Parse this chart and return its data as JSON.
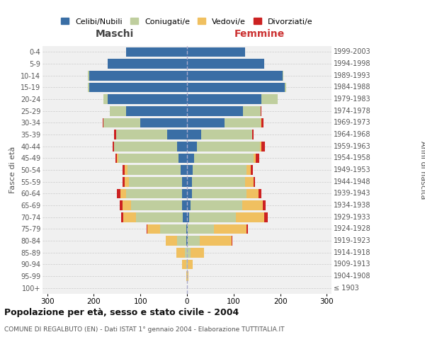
{
  "age_groups": [
    "100+",
    "95-99",
    "90-94",
    "85-89",
    "80-84",
    "75-79",
    "70-74",
    "65-69",
    "60-64",
    "55-59",
    "50-54",
    "45-49",
    "40-44",
    "35-39",
    "30-34",
    "25-29",
    "20-24",
    "15-19",
    "10-14",
    "5-9",
    "0-4"
  ],
  "birth_years": [
    "≤ 1903",
    "1904-1908",
    "1909-1913",
    "1914-1918",
    "1919-1923",
    "1924-1928",
    "1929-1933",
    "1934-1938",
    "1939-1943",
    "1944-1948",
    "1949-1953",
    "1954-1958",
    "1959-1963",
    "1964-1968",
    "1969-1973",
    "1974-1978",
    "1979-1983",
    "1984-1988",
    "1989-1993",
    "1994-1998",
    "1999-2003"
  ],
  "colors": {
    "celibi": "#3A6EA5",
    "coniugati": "#BFCE9E",
    "vedovi": "#F0C060",
    "divorziati": "#CC2222"
  },
  "maschi": {
    "celibi": [
      0,
      0,
      0,
      0,
      1,
      2,
      9,
      10,
      11,
      10,
      13,
      18,
      22,
      42,
      100,
      130,
      170,
      210,
      210,
      170,
      130
    ],
    "coniugati": [
      0,
      0,
      2,
      5,
      20,
      55,
      100,
      110,
      120,
      115,
      115,
      130,
      135,
      110,
      80,
      35,
      10,
      3,
      2,
      0,
      0
    ],
    "vedovi": [
      0,
      1,
      8,
      18,
      25,
      28,
      28,
      18,
      12,
      8,
      5,
      2,
      0,
      0,
      0,
      0,
      0,
      0,
      0,
      0,
      0
    ],
    "divorziati": [
      0,
      0,
      0,
      0,
      0,
      2,
      4,
      6,
      8,
      5,
      5,
      3,
      3,
      4,
      1,
      0,
      0,
      0,
      0,
      0,
      0
    ]
  },
  "femmine": {
    "celibi": [
      0,
      0,
      0,
      0,
      2,
      2,
      5,
      8,
      10,
      10,
      12,
      15,
      22,
      30,
      80,
      120,
      160,
      210,
      205,
      165,
      125
    ],
    "coniugati": [
      0,
      1,
      2,
      8,
      25,
      55,
      100,
      110,
      118,
      115,
      115,
      128,
      135,
      110,
      78,
      38,
      35,
      3,
      2,
      0,
      0
    ],
    "vedovi": [
      0,
      2,
      10,
      28,
      68,
      70,
      60,
      45,
      25,
      18,
      10,
      4,
      2,
      0,
      1,
      0,
      0,
      0,
      0,
      0,
      0
    ],
    "divorziati": [
      0,
      0,
      0,
      0,
      2,
      4,
      8,
      5,
      6,
      3,
      5,
      8,
      8,
      3,
      5,
      2,
      0,
      0,
      0,
      0,
      0
    ]
  },
  "title": "Popolazione per età, sesso e stato civile - 2004",
  "subtitle": "COMUNE DI REGALBUTO (EN) - Dati ISTAT 1° gennaio 2004 - Elaborazione TUTTITALIA.IT",
  "ylabel_left": "Fasce di età",
  "ylabel_right": "Anni di nascita",
  "xlabel_left": "Maschi",
  "xlabel_right": "Femmine",
  "xlim": 310,
  "background_color": "#FFFFFF",
  "grid_color": "#CCCCCC",
  "ax_bg": "#F0F0F0"
}
